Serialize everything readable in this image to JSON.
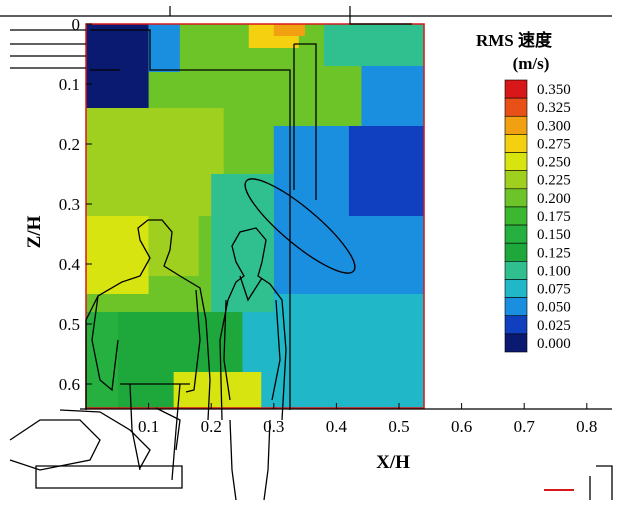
{
  "chart_data": {
    "type": "heatmap",
    "title": "",
    "xlabel": "X/H",
    "ylabel": "Z/H",
    "x_ticks": [
      "0.1",
      "0.2",
      "0.3",
      "0.4",
      "0.5",
      "0.6",
      "0.7",
      "0.8"
    ],
    "y_ticks": [
      "0",
      "0.1",
      "0.2",
      "0.3",
      "0.4",
      "0.5",
      "0.6"
    ],
    "xlim": [
      0,
      0.85
    ],
    "ylim": [
      0,
      0.64
    ],
    "y_inverted": true,
    "domain_extent": {
      "x": [
        0,
        0.54
      ],
      "z": [
        0,
        0.64
      ]
    },
    "colorbar": {
      "title_line1": "RMS  速度",
      "title_line2": "(m/s)",
      "levels": [
        "0.000",
        "0.025",
        "0.050",
        "0.075",
        "0.100",
        "0.125",
        "0.150",
        "0.175",
        "0.200",
        "0.225",
        "0.250",
        "0.275",
        "0.300",
        "0.325",
        "0.350"
      ],
      "colors": [
        "#0a1a70",
        "#1040c0",
        "#1a8fe0",
        "#20b8c8",
        "#30c090",
        "#1ea83c",
        "#26b040",
        "#3cb830",
        "#6cc428",
        "#9fd020",
        "#d8e410",
        "#f4d010",
        "#f0a010",
        "#e85018",
        "#d81818"
      ]
    },
    "field_regions": [
      {
        "x": [
          0.0,
          0.54
        ],
        "z": [
          0.0,
          0.64
        ],
        "level": 0.2
      },
      {
        "x": [
          0.0,
          0.1
        ],
        "z": [
          0.0,
          0.14
        ],
        "level": 0.0
      },
      {
        "x": [
          0.1,
          0.15
        ],
        "z": [
          0.0,
          0.08
        ],
        "level": 0.05
      },
      {
        "x": [
          0.0,
          0.22
        ],
        "z": [
          0.14,
          0.32
        ],
        "level": 0.225
      },
      {
        "x": [
          0.0,
          0.1
        ],
        "z": [
          0.32,
          0.45
        ],
        "level": 0.25
      },
      {
        "x": [
          0.1,
          0.18
        ],
        "z": [
          0.32,
          0.42
        ],
        "level": 0.225
      },
      {
        "x": [
          0.3,
          0.54
        ],
        "z": [
          0.17,
          0.5
        ],
        "level": 0.05
      },
      {
        "x": [
          0.42,
          0.54
        ],
        "z": [
          0.17,
          0.32
        ],
        "level": 0.025
      },
      {
        "x": [
          0.44,
          0.54
        ],
        "z": [
          0.05,
          0.17
        ],
        "level": 0.05
      },
      {
        "x": [
          0.38,
          0.54
        ],
        "z": [
          0.0,
          0.07
        ],
        "level": 0.1
      },
      {
        "x": [
          0.25,
          0.54
        ],
        "z": [
          0.45,
          0.64
        ],
        "level": 0.075
      },
      {
        "x": [
          0.05,
          0.25
        ],
        "z": [
          0.48,
          0.64
        ],
        "level": 0.125
      },
      {
        "x": [
          0.0,
          0.05
        ],
        "z": [
          0.48,
          0.64
        ],
        "level": 0.15
      },
      {
        "x": [
          0.14,
          0.28
        ],
        "z": [
          0.58,
          0.64
        ],
        "level": 0.25
      },
      {
        "x": [
          0.2,
          0.3
        ],
        "z": [
          0.25,
          0.48
        ],
        "level": 0.1
      },
      {
        "x": [
          0.26,
          0.34
        ],
        "z": [
          0.0,
          0.04
        ],
        "level": 0.275
      },
      {
        "x": [
          0.3,
          0.35
        ],
        "z": [
          0.0,
          0.02
        ],
        "level": 0.3
      }
    ]
  }
}
